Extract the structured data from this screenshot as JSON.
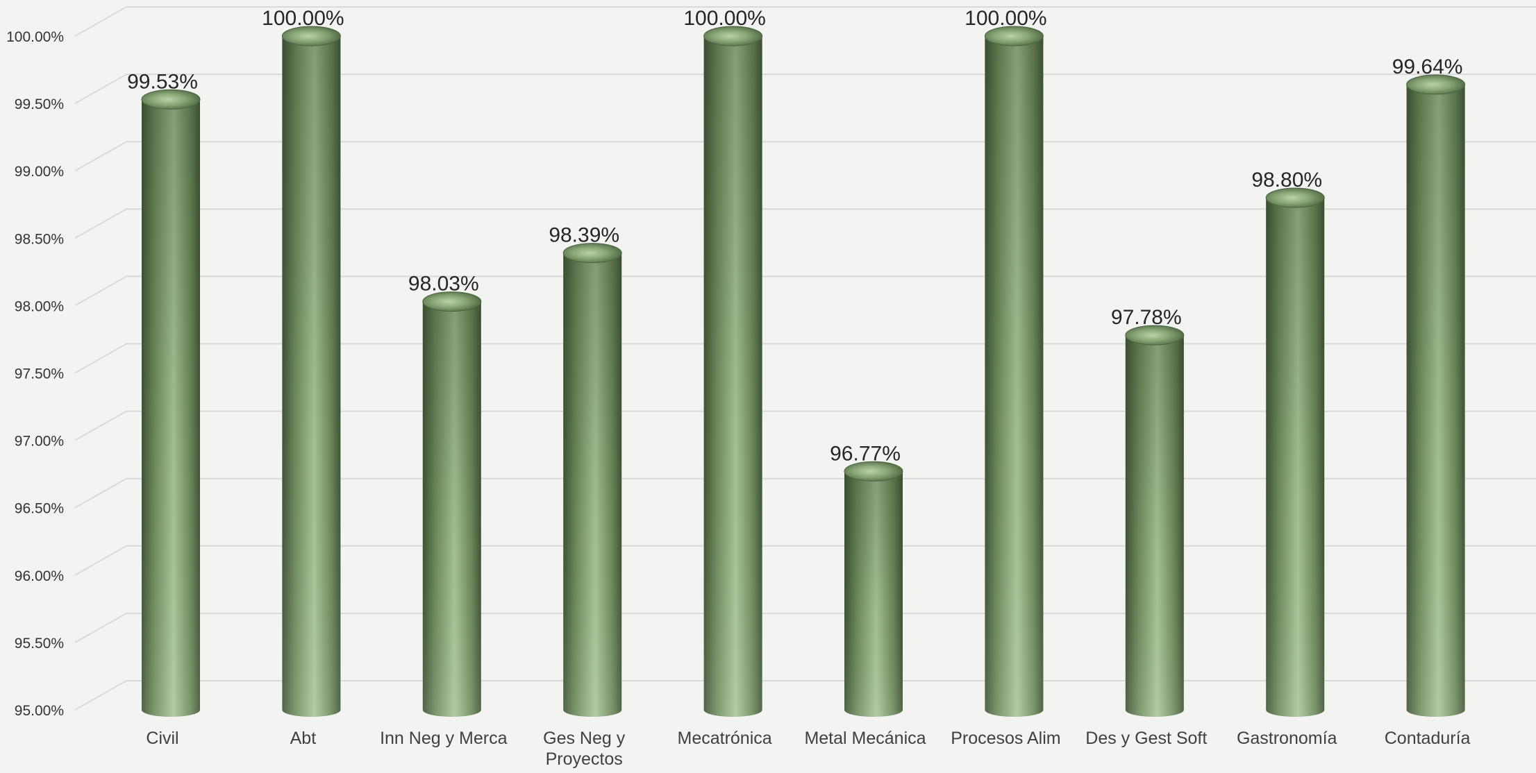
{
  "chart_data": {
    "type": "bar",
    "style": "3d-cylinder",
    "categories": [
      "Civil",
      "Abt",
      "Inn Neg y Merca",
      "Ges Neg y Proyectos",
      "Mecatrónica",
      "Metal Mecánica",
      "Procesos Alim",
      "Des y Gest Soft",
      "Gastronomía",
      "Contaduría"
    ],
    "category_lines": [
      [
        "Civil"
      ],
      [
        "Abt"
      ],
      [
        "Inn Neg y Merca"
      ],
      [
        "Ges Neg y",
        "Proyectos"
      ],
      [
        "Mecatrónica"
      ],
      [
        "Metal Mecánica"
      ],
      [
        "Procesos Alim"
      ],
      [
        "Des y Gest Soft"
      ],
      [
        "Gastronomía"
      ],
      [
        "Contaduría"
      ]
    ],
    "values": [
      99.53,
      100.0,
      98.03,
      98.39,
      100.0,
      96.77,
      100.0,
      97.78,
      98.8,
      99.64
    ],
    "data_labels": [
      "99.53%",
      "100.00%",
      "98.03%",
      "98.39%",
      "100.00%",
      "96.77%",
      "100.00%",
      "97.78%",
      "98.80%",
      "99.64%"
    ],
    "ylim": [
      95.0,
      100.0
    ],
    "yticks": [
      95.0,
      95.5,
      96.0,
      96.5,
      97.0,
      97.5,
      98.0,
      98.5,
      99.0,
      99.5,
      100.0
    ],
    "ytick_labels": [
      "95.00%",
      "95.50%",
      "96.00%",
      "96.50%",
      "97.00%",
      "97.50%",
      "98.00%",
      "98.50%",
      "99.00%",
      "99.50%",
      "100.00%"
    ],
    "title": "",
    "xlabel": "",
    "ylabel": "",
    "grid": true,
    "legend": "none",
    "colors": {
      "background": "#f3f3f1",
      "gridline": "#d9d9d9",
      "bar_light": "#a9c79a",
      "bar_mid": "#6f8c5f",
      "bar_dark": "#3f5535",
      "top_light": "#9dbb8b",
      "top_dark": "#4a6340"
    }
  }
}
